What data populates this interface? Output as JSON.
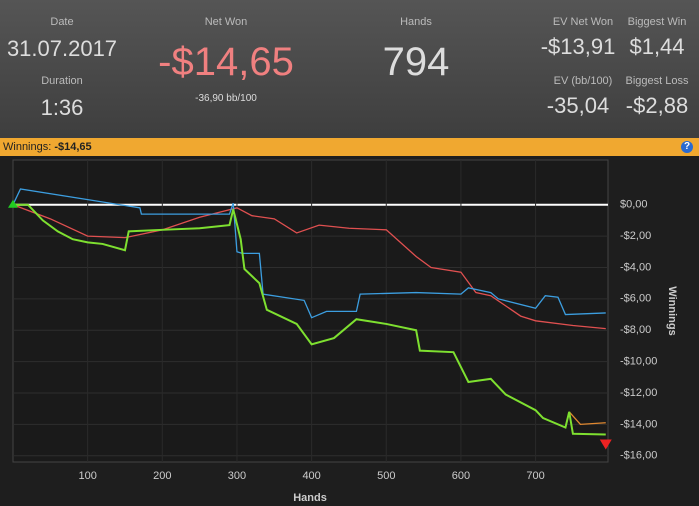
{
  "header": {
    "date_label": "Date",
    "date": "31.07.2017",
    "duration_label": "Duration",
    "duration": "1:36",
    "net_won_label": "Net Won",
    "net_won": "-$14,65",
    "bb100": "-36,90 bb/100",
    "hands_label": "Hands",
    "hands": "794",
    "ev_net_won_label": "EV Net Won",
    "ev_net_won": "-$13,91",
    "biggest_win_label": "Biggest Win",
    "biggest_win": "$1,44",
    "ev_bb100_label": "EV (bb/100)",
    "ev_bb100": "-35,04",
    "biggest_loss_label": "Biggest Loss",
    "biggest_loss": "-$2,88"
  },
  "bar": {
    "label": "Winnings:",
    "value": "-$14,65",
    "help": "?"
  },
  "chart_data": {
    "type": "line",
    "x_label": "Hands",
    "y_label": "Winnings",
    "xlim": [
      0,
      797
    ],
    "xticks": [
      100,
      200,
      300,
      400,
      500,
      600,
      700
    ],
    "ylim": [
      -16.4,
      2.85
    ],
    "yticks": [
      {
        "value": 0,
        "label": "$0,00"
      },
      {
        "value": -2,
        "label": "-$2,00"
      },
      {
        "value": -4,
        "label": "-$4,00"
      },
      {
        "value": -6,
        "label": "-$6,00"
      },
      {
        "value": -8,
        "label": "-$8,00"
      },
      {
        "value": -10,
        "label": "-$10,00"
      },
      {
        "value": -12,
        "label": "-$12,00"
      },
      {
        "value": -14,
        "label": "-$14,00"
      },
      {
        "value": -16,
        "label": "-$16,00"
      }
    ],
    "grid": true,
    "series": [
      {
        "color": "#e05050",
        "x": [
          0,
          50,
          100,
          150,
          200,
          250,
          300,
          320,
          350,
          380,
          410,
          450,
          500,
          540,
          560,
          600,
          620,
          640,
          680,
          700,
          750,
          794
        ],
        "values": [
          0,
          -0.9,
          -2.0,
          -2.1,
          -1.6,
          -0.8,
          -0.2,
          -0.7,
          -0.9,
          -1.8,
          -1.3,
          -1.5,
          -1.6,
          -3.3,
          -4.0,
          -4.3,
          -5.6,
          -5.8,
          -7.1,
          -7.4,
          -7.7,
          -7.9
        ]
      },
      {
        "color": "#3c9ee0",
        "x": [
          0,
          10,
          170,
          172,
          290,
          295,
          300,
          307,
          330,
          335,
          390,
          400,
          420,
          460,
          465,
          540,
          600,
          610,
          640,
          650,
          700,
          713,
          730,
          740,
          794
        ],
        "values": [
          0,
          1.0,
          -0.2,
          -0.6,
          -0.6,
          0.1,
          -3.0,
          -3.1,
          -3.1,
          -5.7,
          -6.1,
          -7.2,
          -6.8,
          -6.8,
          -5.7,
          -5.6,
          -5.7,
          -5.3,
          -5.6,
          -6.0,
          -6.6,
          -5.8,
          -5.9,
          -7.0,
          -6.9
        ]
      },
      {
        "color": "#e08830",
        "x": [
          745,
          760,
          794
        ],
        "values": [
          -13.2,
          -14.0,
          -13.9
        ]
      },
      {
        "color": "#7ee030",
        "x": [
          0,
          20,
          40,
          60,
          80,
          100,
          120,
          150,
          155,
          200,
          250,
          290,
          295,
          305,
          310,
          330,
          340,
          380,
          400,
          430,
          460,
          500,
          540,
          545,
          590,
          610,
          640,
          660,
          700,
          710,
          740,
          745,
          750,
          794
        ],
        "values": [
          0,
          0,
          -1.0,
          -1.7,
          -2.2,
          -2.4,
          -2.5,
          -2.9,
          -1.7,
          -1.6,
          -1.5,
          -1.3,
          -0.3,
          -2.2,
          -4.1,
          -5.0,
          -6.7,
          -7.6,
          -8.9,
          -8.5,
          -7.3,
          -7.6,
          -8.0,
          -9.3,
          -9.4,
          -11.3,
          -11.1,
          -12.1,
          -13.1,
          -13.6,
          -14.2,
          -13.2,
          -14.6,
          -14.65
        ]
      }
    ]
  }
}
